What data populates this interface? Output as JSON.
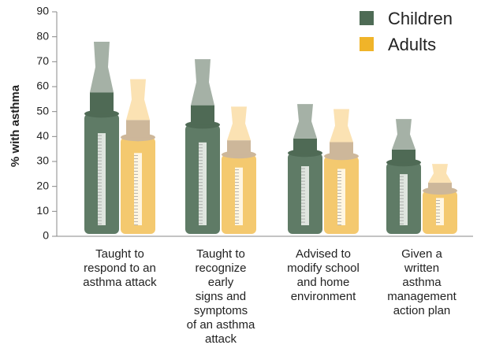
{
  "chart_data": {
    "type": "bar",
    "y_label": "% with asthma",
    "categories": [
      "Taught to\nrespond to an\nasthma attack",
      "Taught to\nrecognize\nearly\nsigns and\nsymptoms\nof an asthma\nattack",
      "Advised to\nmodify school\nand home\nenvironment",
      "Given a\nwritten\nasthma\nmanagement\naction plan"
    ],
    "series": [
      {
        "name": "Children",
        "color": "#4e6b55",
        "values": [
          78,
          71,
          53,
          47
        ]
      },
      {
        "name": "Adults",
        "color": "#f0b429",
        "values": [
          63,
          52,
          51,
          29
        ]
      }
    ],
    "ylim": [
      0,
      90
    ],
    "yticks": [
      0,
      10,
      20,
      30,
      40,
      50,
      60,
      70,
      80,
      90
    ],
    "legend": "top-right"
  }
}
